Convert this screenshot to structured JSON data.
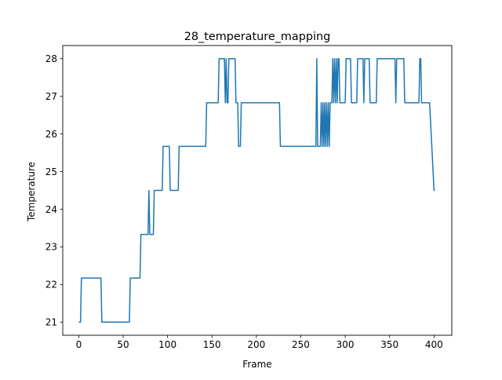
{
  "chart_data": {
    "type": "line",
    "title": "28_temperature_mapping",
    "xlabel": "Frame",
    "ylabel": "Temperature",
    "xlim": [
      -18,
      420
    ],
    "ylim": [
      20.65,
      28.35
    ],
    "xticks": [
      0,
      50,
      100,
      150,
      200,
      250,
      300,
      350,
      400
    ],
    "yticks": [
      21,
      22,
      23,
      24,
      25,
      26,
      27,
      28
    ],
    "grid": false,
    "legend": "none",
    "series": [
      {
        "color": "#1f77b4",
        "x": [
          0,
          2,
          3,
          25,
          26,
          57,
          58,
          69,
          70,
          78,
          79,
          80,
          81,
          84,
          85,
          94,
          95,
          102,
          103,
          112,
          113,
          143,
          144,
          157,
          158,
          164,
          165,
          166,
          167,
          168,
          169,
          176,
          177,
          179,
          180,
          182,
          183,
          226,
          227,
          267,
          268,
          269,
          272,
          273,
          274,
          275,
          276,
          277,
          278,
          279,
          280,
          281,
          282,
          283,
          284,
          285,
          286,
          287,
          288,
          289,
          290,
          291,
          292,
          293,
          294,
          295,
          296,
          297,
          298,
          299,
          300,
          301,
          302,
          306,
          307,
          313,
          314,
          319,
          320,
          321,
          322,
          327,
          328,
          335,
          336,
          343,
          344,
          346,
          347,
          356,
          357,
          358,
          359,
          366,
          367,
          383,
          384,
          385,
          386,
          394,
          395,
          400,
          401
        ],
        "y": [
          21,
          21,
          22.17,
          22.17,
          21,
          21,
          22.17,
          22.17,
          23.33,
          23.33,
          24.5,
          23.33,
          23.33,
          23.33,
          24.5,
          24.5,
          25.67,
          25.67,
          24.5,
          24.5,
          25.67,
          25.67,
          26.83,
          26.83,
          28,
          28,
          26.83,
          28,
          26.83,
          26.83,
          28,
          28,
          26.83,
          26.83,
          25.67,
          25.67,
          26.83,
          26.83,
          25.67,
          25.67,
          28,
          25.67,
          25.67,
          26.83,
          25.67,
          26.83,
          25.67,
          26.83,
          25.67,
          26.83,
          25.67,
          26.83,
          25.67,
          26.83,
          26.83,
          26.83,
          28,
          26.83,
          28,
          26.83,
          28,
          26.83,
          28,
          28,
          26.83,
          26.83,
          26.83,
          26.83,
          26.83,
          26.83,
          26.83,
          28,
          28,
          28,
          26.83,
          26.83,
          28,
          28,
          28,
          26.83,
          28,
          28,
          26.83,
          26.83,
          28,
          28,
          28,
          28,
          28,
          28,
          26.83,
          28,
          28,
          28,
          26.83,
          26.83,
          28,
          28,
          26.83,
          26.83,
          26.83,
          24.5,
          24.5
        ]
      }
    ]
  }
}
